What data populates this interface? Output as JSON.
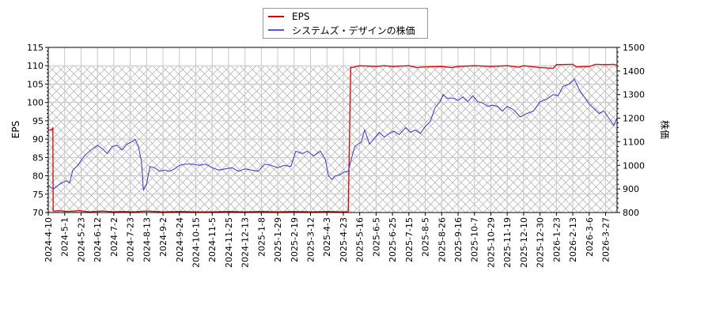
{
  "chart_data": {
    "type": "line",
    "title": "",
    "legend": [
      {
        "name": "EPS",
        "color": "#dd0000",
        "axis": "left"
      },
      {
        "name": "システムズ・デザインの株価",
        "color": "#3333dd",
        "axis": "right"
      }
    ],
    "legend_position": "top-center",
    "xlabel": "",
    "ylabel_left": "EPS",
    "ylabel_right": "株価",
    "ylim_left": [
      70,
      115
    ],
    "ylim_right": [
      800,
      1500
    ],
    "yticks_left": [
      70,
      75,
      80,
      85,
      90,
      95,
      100,
      105,
      110,
      115
    ],
    "yticks_right": [
      800,
      900,
      1000,
      1100,
      1200,
      1300,
      1400,
      1500
    ],
    "xticks": [
      "2024-4-10",
      "2024-5-1",
      "2024-5-23",
      "2024-6-12",
      "2024-7-2",
      "2024-7-23",
      "2024-8-13",
      "2024-9-2",
      "2024-9-24",
      "2024-10-15",
      "2024-11-5",
      "2024-11-25",
      "2024-12-13",
      "2025-1-8",
      "2025-1-29",
      "2025-2-19",
      "2025-3-12",
      "2025-4-3",
      "2025-4-23",
      "2025-5-16",
      "2025-6-5",
      "2025-6-25",
      "2025-7-15",
      "2025-8-5",
      "2025-8-26",
      "2025-9-16",
      "2025-10-7",
      "2025-10-29",
      "2025-11-19",
      "2025-12-10",
      "2025-12-30",
      "2026-1-23",
      "2026-2-13",
      "2026-3-6",
      "2026-3-27"
    ],
    "grid": true,
    "hatched_region_below": 110,
    "series": [
      {
        "name": "EPS",
        "axis": "left",
        "points": [
          [
            0,
            92.5
          ],
          [
            0.18,
            92.5
          ],
          [
            0.25,
            92.8
          ],
          [
            0.28,
            93.2
          ],
          [
            0.3,
            70.4
          ],
          [
            0.45,
            70.4
          ],
          [
            0.6,
            70.5
          ],
          [
            1.2,
            70.3
          ],
          [
            1.9,
            70.5
          ],
          [
            2.5,
            70.2
          ],
          [
            3.3,
            70.4
          ],
          [
            4.0,
            70.2
          ],
          [
            4.5,
            70.3
          ],
          [
            5.2,
            70.2
          ],
          [
            6.0,
            70.4
          ],
          [
            7.0,
            70.2
          ],
          [
            8.0,
            70.3
          ],
          [
            9.0,
            70.2
          ],
          [
            10.0,
            70.2
          ],
          [
            11.0,
            70.3
          ],
          [
            12.0,
            70.2
          ],
          [
            13.0,
            70.3
          ],
          [
            14.0,
            70.2
          ],
          [
            15.0,
            70.3
          ],
          [
            16.0,
            70.2
          ],
          [
            17.0,
            70.3
          ],
          [
            18.0,
            70.2
          ],
          [
            18.3,
            70.2
          ],
          [
            18.45,
            109.5
          ],
          [
            18.6,
            109.6
          ],
          [
            19.0,
            110.0
          ],
          [
            20.0,
            109.8
          ],
          [
            20.5,
            110.0
          ],
          [
            21.0,
            109.8
          ],
          [
            22.0,
            110.0
          ],
          [
            22.5,
            109.5
          ],
          [
            23.0,
            109.7
          ],
          [
            24.0,
            109.8
          ],
          [
            24.6,
            109.5
          ],
          [
            25.0,
            109.8
          ],
          [
            26.0,
            110.0
          ],
          [
            27.0,
            109.8
          ],
          [
            28.0,
            110.0
          ],
          [
            28.7,
            109.6
          ],
          [
            29.0,
            110.0
          ],
          [
            30.0,
            109.5
          ],
          [
            30.8,
            109.3
          ],
          [
            31.0,
            110.3
          ],
          [
            32.0,
            110.4
          ],
          [
            32.2,
            109.7
          ],
          [
            33.0,
            109.8
          ],
          [
            33.4,
            110.4
          ],
          [
            34.0,
            110.3
          ],
          [
            34.5,
            110.4
          ],
          [
            34.9,
            109.8
          ]
        ]
      },
      {
        "name": "システムズ・デザインの株価",
        "axis": "right",
        "points": [
          [
            0,
            915
          ],
          [
            0.3,
            900
          ],
          [
            0.7,
            920
          ],
          [
            1.1,
            935
          ],
          [
            1.3,
            925
          ],
          [
            1.5,
            980
          ],
          [
            1.8,
            1000
          ],
          [
            2.2,
            1040
          ],
          [
            2.6,
            1065
          ],
          [
            3.0,
            1085
          ],
          [
            3.3,
            1070
          ],
          [
            3.6,
            1050
          ],
          [
            3.9,
            1080
          ],
          [
            4.2,
            1085
          ],
          [
            4.5,
            1065
          ],
          [
            4.8,
            1090
          ],
          [
            5.1,
            1100
          ],
          [
            5.3,
            1110
          ],
          [
            5.5,
            1080
          ],
          [
            5.7,
            1010
          ],
          [
            5.8,
            895
          ],
          [
            6.0,
            920
          ],
          [
            6.2,
            995
          ],
          [
            6.5,
            990
          ],
          [
            6.8,
            975
          ],
          [
            7.1,
            980
          ],
          [
            7.4,
            975
          ],
          [
            7.7,
            985
          ],
          [
            8.0,
            1000
          ],
          [
            8.4,
            1005
          ],
          [
            8.8,
            1005
          ],
          [
            9.2,
            1000
          ],
          [
            9.6,
            1005
          ],
          [
            10.0,
            990
          ],
          [
            10.4,
            980
          ],
          [
            10.8,
            985
          ],
          [
            11.2,
            990
          ],
          [
            11.6,
            975
          ],
          [
            12.0,
            985
          ],
          [
            12.4,
            980
          ],
          [
            12.8,
            975
          ],
          [
            13.2,
            1005
          ],
          [
            13.6,
            1000
          ],
          [
            14.0,
            990
          ],
          [
            14.4,
            1000
          ],
          [
            14.8,
            995
          ],
          [
            15.1,
            1060
          ],
          [
            15.5,
            1050
          ],
          [
            15.8,
            1060
          ],
          [
            16.2,
            1040
          ],
          [
            16.6,
            1060
          ],
          [
            16.9,
            1025
          ],
          [
            17.1,
            955
          ],
          [
            17.3,
            940
          ],
          [
            17.5,
            955
          ],
          [
            17.8,
            960
          ],
          [
            18.0,
            970
          ],
          [
            18.3,
            975
          ],
          [
            18.5,
            1030
          ],
          [
            18.7,
            1080
          ],
          [
            18.9,
            1090
          ],
          [
            19.1,
            1100
          ],
          [
            19.3,
            1150
          ],
          [
            19.6,
            1090
          ],
          [
            19.9,
            1115
          ],
          [
            20.2,
            1140
          ],
          [
            20.5,
            1120
          ],
          [
            20.8,
            1135
          ],
          [
            21.1,
            1145
          ],
          [
            21.4,
            1130
          ],
          [
            21.8,
            1160
          ],
          [
            22.1,
            1140
          ],
          [
            22.4,
            1150
          ],
          [
            22.7,
            1135
          ],
          [
            23.0,
            1165
          ],
          [
            23.3,
            1185
          ],
          [
            23.6,
            1245
          ],
          [
            23.9,
            1270
          ],
          [
            24.1,
            1300
          ],
          [
            24.3,
            1285
          ],
          [
            24.7,
            1285
          ],
          [
            25.0,
            1275
          ],
          [
            25.3,
            1290
          ],
          [
            25.6,
            1270
          ],
          [
            25.9,
            1295
          ],
          [
            26.2,
            1270
          ],
          [
            26.5,
            1265
          ],
          [
            26.8,
            1250
          ],
          [
            27.1,
            1255
          ],
          [
            27.4,
            1250
          ],
          [
            27.7,
            1230
          ],
          [
            28.0,
            1250
          ],
          [
            28.4,
            1235
          ],
          [
            28.8,
            1205
          ],
          [
            29.2,
            1220
          ],
          [
            29.6,
            1230
          ],
          [
            30.0,
            1270
          ],
          [
            30.4,
            1280
          ],
          [
            30.8,
            1300
          ],
          [
            31.1,
            1295
          ],
          [
            31.4,
            1335
          ],
          [
            31.8,
            1345
          ],
          [
            32.1,
            1365
          ],
          [
            32.4,
            1320
          ],
          [
            32.7,
            1290
          ],
          [
            33.0,
            1260
          ],
          [
            33.3,
            1240
          ],
          [
            33.6,
            1220
          ],
          [
            33.9,
            1230
          ],
          [
            34.2,
            1200
          ],
          [
            34.5,
            1170
          ],
          [
            34.7,
            1200
          ],
          [
            34.9,
            1195
          ]
        ]
      }
    ]
  },
  "legend": {
    "items": [
      {
        "label": "EPS",
        "color": "#dd0000"
      },
      {
        "label": "システムズ・デザインの株価",
        "color": "#5555ee"
      }
    ]
  },
  "axes": {
    "left_title": "EPS",
    "right_title": "株価"
  }
}
